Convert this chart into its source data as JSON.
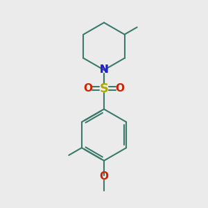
{
  "bg_color": "#ebebeb",
  "bond_color": "#3a7a6a",
  "bond_width": 1.5,
  "n_color": "#2222cc",
  "s_color": "#aaaa00",
  "o_color": "#cc2200",
  "font_size_atom": 10,
  "fig_size": [
    3.0,
    3.0
  ],
  "dpi": 100,
  "xlim": [
    0,
    10
  ],
  "ylim": [
    0,
    10
  ]
}
